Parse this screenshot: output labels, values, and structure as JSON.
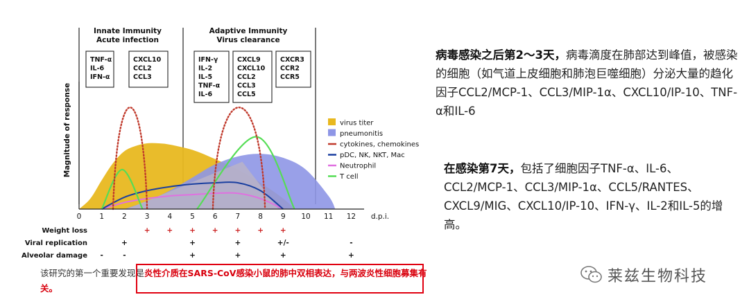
{
  "chart_data": {
    "type": "area",
    "title": "",
    "xlabel": "d.p.i.",
    "ylabel": "Magnitude of response",
    "xlim": [
      0,
      12
    ],
    "x_ticks": [
      "0",
      "1",
      "2",
      "3",
      "4",
      "5",
      "6",
      "7",
      "8",
      "9",
      "10",
      "11",
      "12"
    ],
    "phases": [
      {
        "title": "Innate Immunity",
        "subtitle": "Acute infection"
      },
      {
        "title": "Adaptive Immunity",
        "subtitle": "Virus clearance"
      }
    ],
    "boxes": [
      {
        "lines": [
          "TNF-α",
          "IL-6",
          "IFN-α"
        ]
      },
      {
        "lines": [
          "CXCL10",
          "CCL2",
          "CCL3"
        ]
      },
      {
        "lines": [
          "IFN-γ",
          "IL-2",
          "IL-5",
          "TNF-α",
          "IL-6"
        ]
      },
      {
        "lines": [
          "CXCL9",
          "CXCL10",
          "CCL2",
          "CCL3",
          "CCL5"
        ]
      },
      {
        "lines": [
          "CXCR3",
          "CCR2",
          "CCR5"
        ]
      }
    ],
    "series": [
      {
        "name": "virus titer",
        "color": "#e8b820",
        "x": [
          0,
          0.5,
          1,
          1.5,
          2,
          2.5,
          3,
          3.5,
          4,
          5,
          6,
          7,
          8,
          9,
          9.5
        ],
        "y": [
          0,
          0.08,
          0.22,
          0.35,
          0.44,
          0.48,
          0.5,
          0.5,
          0.49,
          0.45,
          0.38,
          0.3,
          0.2,
          0.08,
          0
        ]
      },
      {
        "name": "pneumonitis",
        "color": "#8e96e6",
        "x": [
          2,
          3,
          4,
          5,
          6,
          7,
          8,
          9,
          10,
          11,
          11.3
        ],
        "y": [
          0,
          0.06,
          0.14,
          0.24,
          0.34,
          0.4,
          0.42,
          0.39,
          0.3,
          0.1,
          0
        ]
      },
      {
        "name": "cytokines, chemokines",
        "color": "#c0392b",
        "peaks": [
          {
            "x": [
              1.5,
              2.05,
              3
            ],
            "y": [
              0,
              0.82,
              0
            ]
          },
          {
            "x": [
              5.9,
              7,
              8.2
            ],
            "y": [
              0,
              0.82,
              0
            ]
          }
        ]
      },
      {
        "name": "pDC, NK, NKT, Mac",
        "color": "#1a3fa0",
        "x": [
          1,
          2,
          3,
          4,
          5,
          6,
          7,
          8,
          9
        ],
        "y": [
          0,
          0.09,
          0.14,
          0.17,
          0.19,
          0.2,
          0.2,
          0.14,
          0
        ]
      },
      {
        "name": "Neutrophil",
        "color": "#e070e0",
        "x": [
          1,
          2,
          3,
          4,
          5,
          6,
          7,
          8,
          9
        ],
        "y": [
          0,
          0.05,
          0.08,
          0.1,
          0.11,
          0.12,
          0.12,
          0.08,
          0
        ]
      },
      {
        "name": "T cell",
        "color": "#55dd55",
        "peaks": [
          {
            "x": [
              1,
              1.9,
              2.8
            ],
            "y": [
              0,
              0.3,
              0
            ]
          },
          {
            "x": [
              5.2,
              7.8,
              9.5
            ],
            "y": [
              0,
              0.55,
              0
            ]
          }
        ]
      }
    ],
    "rows": [
      {
        "label": "Weight loss",
        "marks": [
          {
            "x": 3,
            "v": "+"
          },
          {
            "x": 4,
            "v": "+"
          },
          {
            "x": 5,
            "v": "+"
          },
          {
            "x": 6,
            "v": "+"
          },
          {
            "x": 7,
            "v": "+"
          },
          {
            "x": 8,
            "v": "+"
          },
          {
            "x": 9,
            "v": "+"
          }
        ]
      },
      {
        "label": "Viral replication",
        "marks": [
          {
            "x": 2,
            "v": "+"
          },
          {
            "x": 5,
            "v": "+"
          },
          {
            "x": 7,
            "v": "+"
          },
          {
            "x": 9,
            "v": "+/-"
          },
          {
            "x": 12,
            "v": "-"
          }
        ]
      },
      {
        "label": "Alveolar damage",
        "marks": [
          {
            "x": 1,
            "v": "-"
          },
          {
            "x": 2,
            "v": "-"
          },
          {
            "x": 5,
            "v": "+"
          },
          {
            "x": 7,
            "v": "+"
          },
          {
            "x": 9,
            "v": "+"
          },
          {
            "x": 12,
            "v": "+"
          }
        ]
      }
    ]
  },
  "note1": {
    "bold": "病毒感染之后第2～3天，",
    "text": "病毒滴度在肺部达到峰值，被感染的细胞（如气道上皮细胞和肺泡巨噬细胞）分泌大量的趋化因子CCL2/MCP-1、CCL3/MIP-1α、CXCL10/IP-10、TNF-α和IL-6"
  },
  "note2": {
    "bold": "在感染第7天，",
    "text": "包括了细胞因子TNF-α、IL-6、CCL2/MCP-1、CCL3/MIP-1α、CCL5/RANTES、CXCL9/MIG、CXCL10/IP-10、IFN-γ、IL-2和IL-5的增高。"
  },
  "caption": {
    "prefix": "该研究的第一个重要发现是",
    "highlight": "炎性介质在SARS-CoV感染小鼠的肺中双相表达，与两波炎性细胞募集有关。"
  },
  "brand": {
    "name": "莱兹生物科技",
    "icon": "wechat-icon"
  }
}
